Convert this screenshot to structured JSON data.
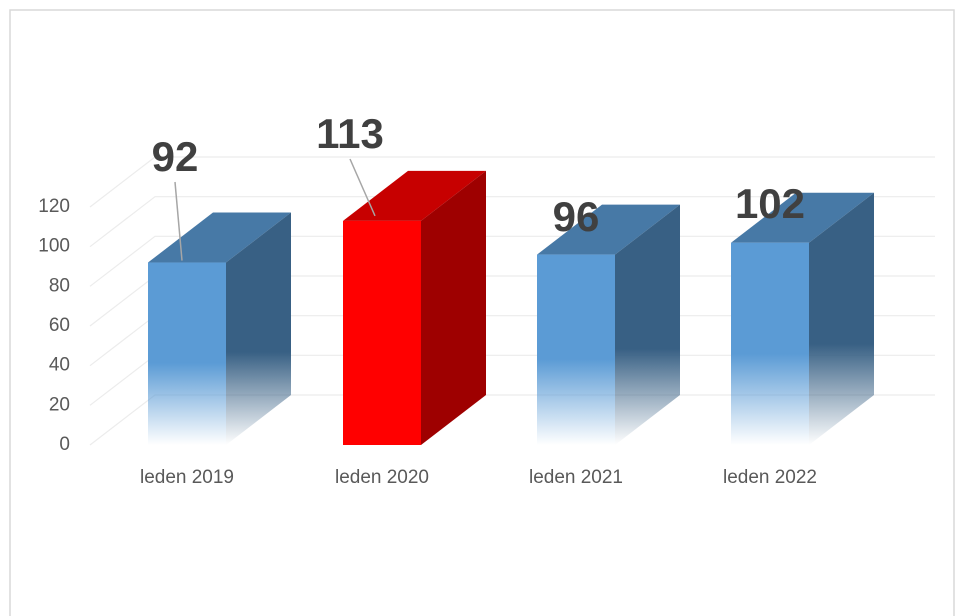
{
  "chart_data": {
    "type": "bar3d",
    "categories": [
      "leden 2019",
      "leden 2020",
      "leden 2021",
      "leden 2022"
    ],
    "values": [
      92,
      113,
      96,
      102
    ],
    "colors": [
      "#5b9bd5",
      "#ff0000",
      "#5b9bd5",
      "#5b9bd5"
    ],
    "ylim": [
      0,
      120
    ],
    "yticks": [
      0,
      20,
      40,
      60,
      80,
      100,
      120
    ],
    "grid": true
  }
}
